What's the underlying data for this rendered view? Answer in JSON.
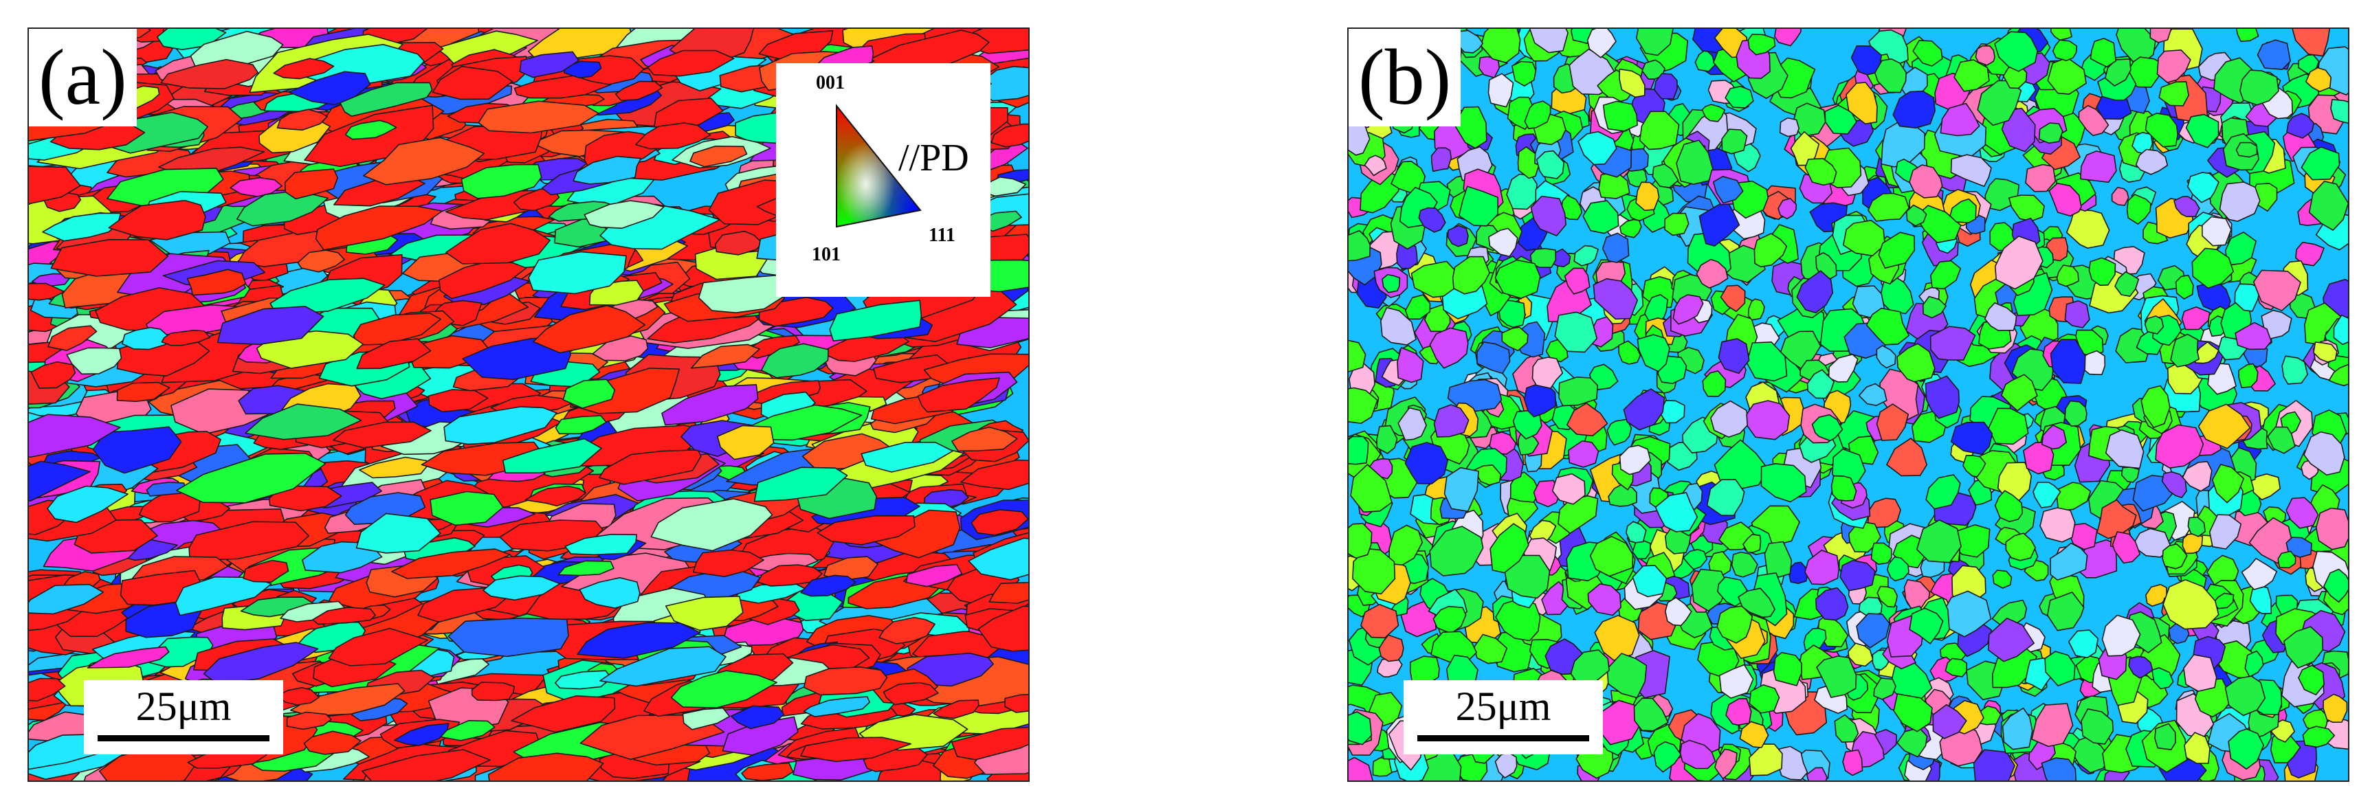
{
  "panels": [
    {
      "label": "(a)",
      "scale_label": "25μm",
      "seed": 11,
      "texture": "red-elongated"
    },
    {
      "label": "(b)",
      "scale_label": "25μm",
      "seed": 29,
      "texture": "green-equiaxed"
    }
  ],
  "legend": {
    "corner_001": "001",
    "corner_101": "101",
    "corner_111": "111",
    "direction": "//PD",
    "colors": {
      "corner_001": "#ff0000",
      "corner_101": "#00ff00",
      "corner_111": "#0000ff"
    }
  },
  "palettes": {
    "red-elongated": [
      "#ff1a1a",
      "#ff2a10",
      "#f22a2a",
      "#ff5522",
      "#1aff3a",
      "#22dd66",
      "#00ffaa",
      "#1affe6",
      "#22c8ff",
      "#2a6bff",
      "#1a22ff",
      "#5a2aff",
      "#b42aff",
      "#ff2ad0",
      "#ff6fa0",
      "#ffd21a",
      "#c8ff2a",
      "#aaffcc",
      "#ff3020",
      "#20e8ff"
    ],
    "green-equiaxed": [
      "#1aff22",
      "#22ee44",
      "#00ff55",
      "#3aff1a",
      "#22ffb0",
      "#1affee",
      "#44ccff",
      "#2a7aff",
      "#1a2aff",
      "#5a33ff",
      "#9a44ff",
      "#d24aff",
      "#ff44dd",
      "#ff77b8",
      "#ffb8e0",
      "#ff5a4a",
      "#ffd21a",
      "#d8ff3a",
      "#e8e8ff",
      "#c8c8ff"
    ]
  }
}
